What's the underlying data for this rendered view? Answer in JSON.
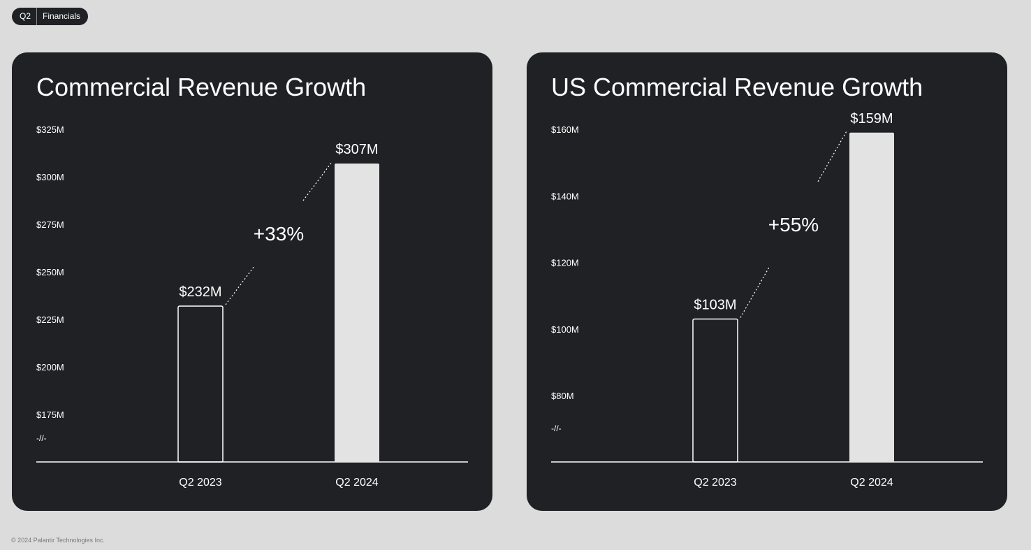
{
  "header": {
    "tag_quarter": "Q2",
    "tag_section": "Financials"
  },
  "footer": {
    "copyright": "© 2024 Palantir Technologies Inc."
  },
  "colors": {
    "page_background": "#dcdcdc",
    "panel_background": "#1f2124",
    "bar_fill_current": "#e3e3e3",
    "bar_outline_prior": "#ffffff",
    "text": "#ffffff"
  },
  "chart_data": [
    {
      "type": "bar",
      "title": "Commercial Revenue Growth",
      "categories": [
        "Q2 2023",
        "Q2 2024"
      ],
      "values": [
        232,
        307
      ],
      "value_labels": [
        "$232M",
        "$307M"
      ],
      "bar_styles": [
        "outline",
        "filled"
      ],
      "yticks": [
        175,
        200,
        225,
        250,
        275,
        300,
        325
      ],
      "ytick_labels": [
        "$175M",
        "$200M",
        "$225M",
        "$250M",
        "$275M",
        "$300M",
        "$325M"
      ],
      "ylim": [
        175,
        325
      ],
      "axis_break": true,
      "axis_break_label": "-//-",
      "growth_label": "+33%",
      "grid": false,
      "legend": "none"
    },
    {
      "type": "bar",
      "title": "US Commercial Revenue Growth",
      "categories": [
        "Q2 2023",
        "Q2 2024"
      ],
      "values": [
        103,
        159
      ],
      "value_labels": [
        "$103M",
        "$159M"
      ],
      "bar_styles": [
        "outline",
        "filled"
      ],
      "yticks": [
        80,
        100,
        120,
        140,
        160
      ],
      "ytick_labels": [
        "$80M",
        "$100M",
        "$120M",
        "$140M",
        "$160M"
      ],
      "ylim": [
        80,
        160
      ],
      "axis_break": true,
      "axis_break_label": "-//-",
      "growth_label": "+55%",
      "grid": false,
      "legend": "none"
    }
  ]
}
